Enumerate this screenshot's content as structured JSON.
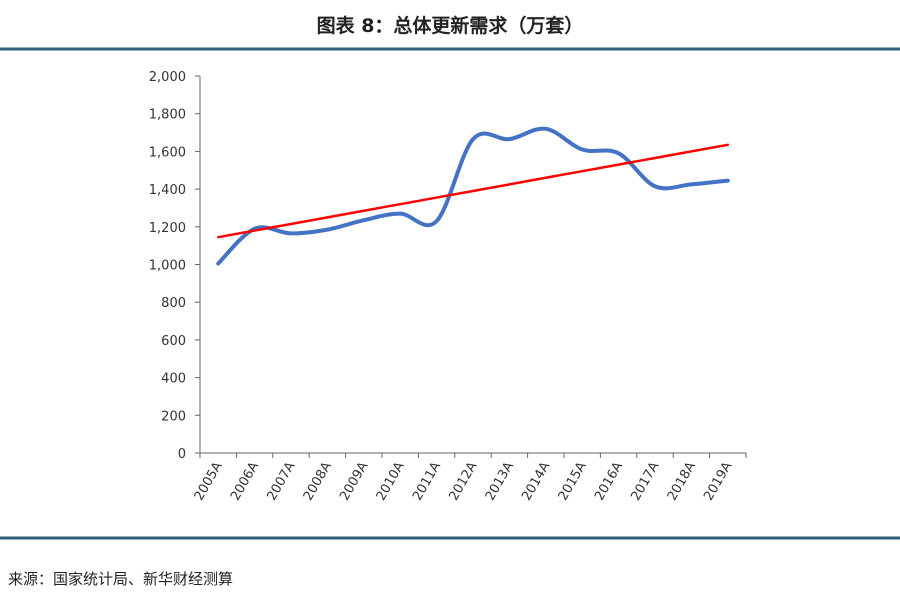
{
  "chart_data": {
    "type": "line",
    "title": "图表 8：总体更新需求（万套）",
    "source": "来源：国家统计局、新华财经测算",
    "categories": [
      "2005A",
      "2006A",
      "2007A",
      "2008A",
      "2009A",
      "2010A",
      "2011A",
      "2012A",
      "2013A",
      "2014A",
      "2015A",
      "2016A",
      "2017A",
      "2018A",
      "2019A"
    ],
    "series": [
      {
        "color": "#4472c4",
        "smooth": true,
        "values": [
          1005,
          1190,
          1165,
          1185,
          1235,
          1270,
          1230,
          1665,
          1665,
          1720,
          1610,
          1590,
          1415,
          1425,
          1445
        ]
      },
      {
        "color": "#ff0000",
        "smooth": false,
        "values": [
          1145,
          1180,
          1215,
          1250,
          1285,
          1320,
          1355,
          1390,
          1425,
          1460,
          1495,
          1530,
          1565,
          1600,
          1635
        ]
      }
    ],
    "ylim": [
      0,
      2000
    ],
    "yticks": [
      0,
      200,
      400,
      600,
      800,
      {
        "value": 1000,
        "label": "1,000"
      },
      {
        "value": 1200,
        "label": "1,200"
      },
      {
        "value": 1400,
        "label": "1,400"
      },
      {
        "value": 1600,
        "label": "1,600"
      },
      {
        "value": 1800,
        "label": "1,800"
      },
      {
        "value": 2000,
        "label": "2,000"
      }
    ],
    "grid": false
  }
}
